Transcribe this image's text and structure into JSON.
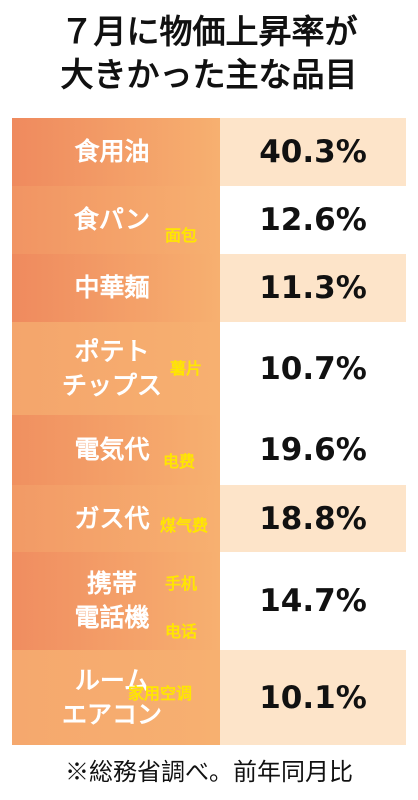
{
  "header": {
    "title": [
      "７月に物価上昇率が",
      "大きかった主な品目"
    ]
  },
  "table": {
    "rows": [
      {
        "item": [
          "食用油"
        ],
        "value": "40.3%"
      },
      {
        "item": [
          "食パン"
        ],
        "note": [
          "面包"
        ],
        "value": "12.6%"
      },
      {
        "item": [
          "中華麺"
        ],
        "value": "11.3%"
      },
      {
        "item": [
          "ポテト",
          "チップス"
        ],
        "note": [
          "薯片"
        ],
        "value": "10.7%"
      },
      {
        "item": [
          "電気代"
        ],
        "note": [
          "电费"
        ],
        "value": "19.6%"
      },
      {
        "item": [
          "ガス代"
        ],
        "note": [
          "煤气费"
        ],
        "value": "18.8%"
      },
      {
        "item": [
          "携帯",
          "電話機"
        ],
        "note": [
          "手机",
          "电话"
        ],
        "value": "14.7%"
      },
      {
        "item": [
          "ルーム",
          "エアコン"
        ],
        "note": [
          "家用空调"
        ],
        "value": "10.1%"
      }
    ]
  },
  "footer": "※総務省調べ。前年同月比"
}
